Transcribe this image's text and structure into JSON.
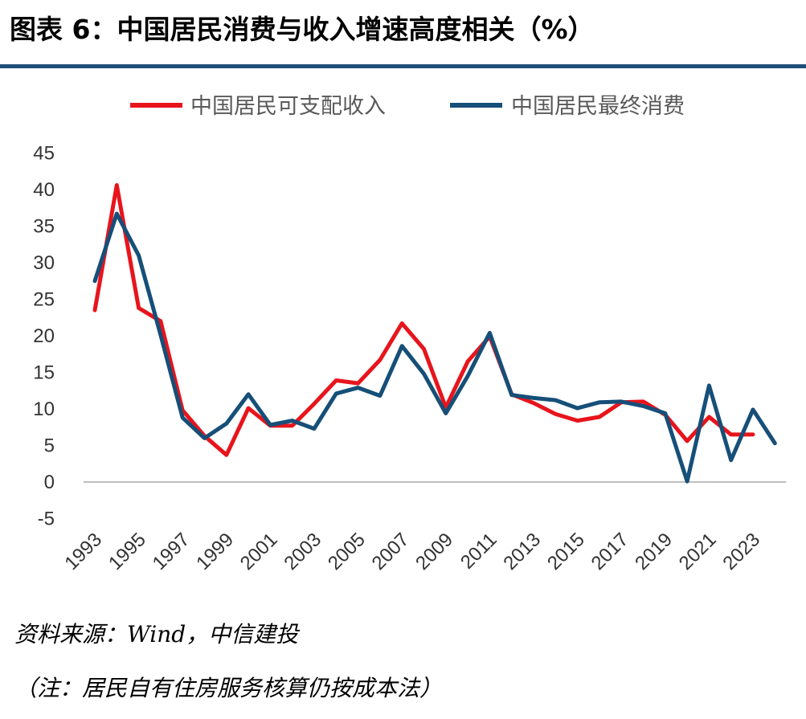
{
  "header": {
    "title": "图表 6：中国居民消费与收入增速高度相关（%）"
  },
  "chart_data": {
    "type": "line",
    "x": [
      1993,
      1994,
      1995,
      1996,
      1997,
      1998,
      1999,
      2000,
      2001,
      2002,
      2003,
      2004,
      2005,
      2006,
      2007,
      2008,
      2009,
      2010,
      2011,
      2012,
      2013,
      2014,
      2015,
      2016,
      2017,
      2018,
      2019,
      2020,
      2021,
      2022,
      2023,
      2024
    ],
    "xticks": [
      "1993",
      "1995",
      "1997",
      "1999",
      "2001",
      "2003",
      "2005",
      "2007",
      "2009",
      "2011",
      "2013",
      "2015",
      "2017",
      "2019",
      "2021",
      "2023"
    ],
    "yticks": [
      "45",
      "40",
      "35",
      "30",
      "25",
      "20",
      "15",
      "10",
      "5",
      "0",
      "-5"
    ],
    "ylim": [
      -5,
      45
    ],
    "legend_position": "top",
    "series": [
      {
        "name": "中国居民可支配收入",
        "color": "#e8141c",
        "values": [
          23.5,
          40.6,
          23.8,
          22.0,
          9.8,
          6.3,
          3.7,
          10.1,
          7.7,
          7.7,
          10.7,
          13.9,
          13.5,
          16.7,
          21.7,
          18.2,
          10.2,
          16.5,
          19.9,
          12.0,
          10.8,
          9.3,
          8.4,
          8.9,
          10.9,
          11.0,
          9.2,
          5.6,
          8.9,
          6.5,
          6.5,
          null
        ]
      },
      {
        "name": "中国居民最终消费",
        "color": "#164f78",
        "values": [
          27.5,
          36.7,
          31.0,
          20.1,
          8.8,
          6.0,
          8.0,
          12.0,
          7.8,
          8.4,
          7.3,
          12.1,
          12.9,
          11.8,
          18.6,
          14.8,
          9.4,
          14.5,
          20.4,
          11.9,
          11.5,
          11.2,
          10.1,
          10.9,
          11.0,
          10.4,
          9.4,
          0.1,
          13.2,
          3.0,
          9.9,
          5.3
        ]
      }
    ]
  },
  "footer": {
    "source": "资料来源：Wind，中信建投",
    "note": "（注：居民自有住房服务核算仍按成本法）"
  }
}
